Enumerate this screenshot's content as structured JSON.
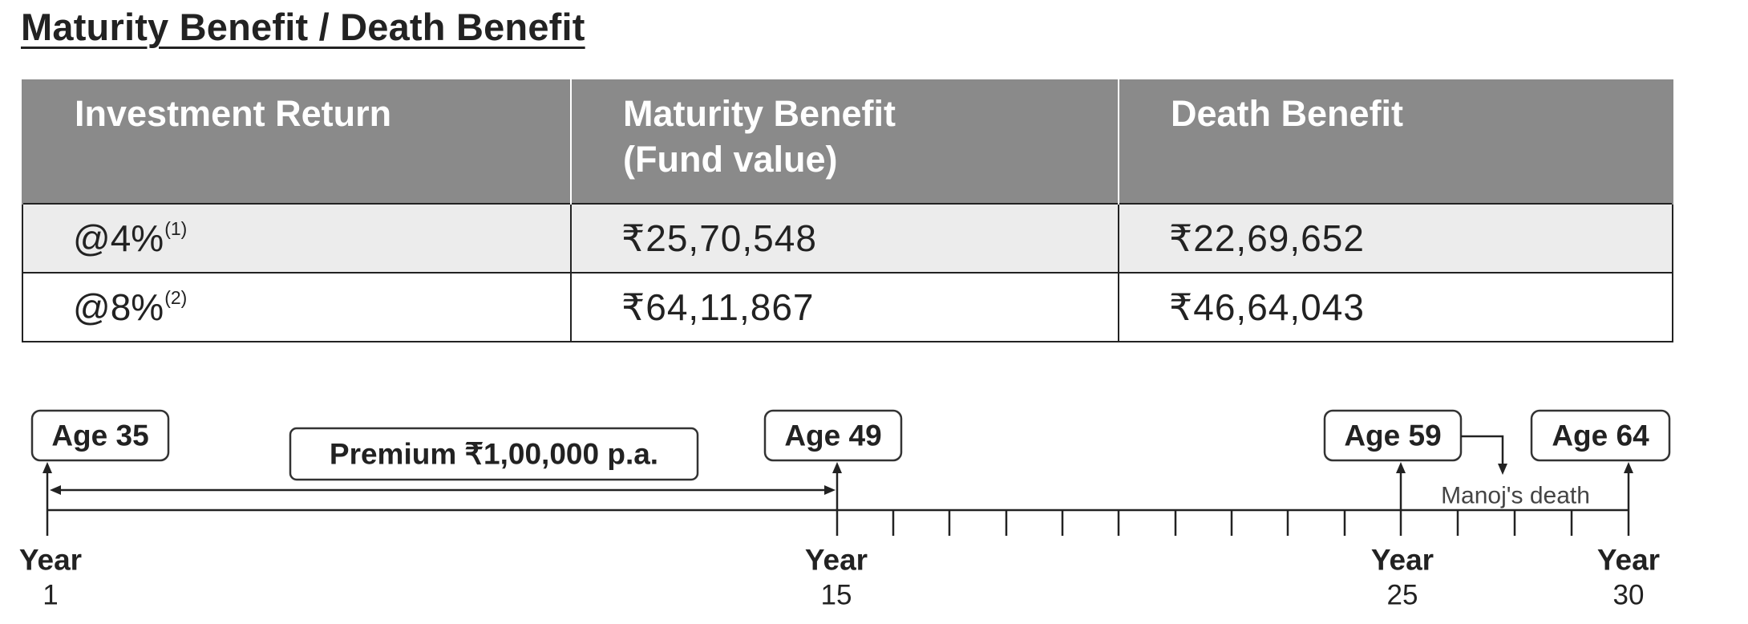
{
  "title": "Maturity Benefit / Death Benefit",
  "table": {
    "headers": {
      "col1": "Investment Return",
      "col2_line1": "Maturity Benefit",
      "col2_line2": "(Fund value)",
      "col3": "Death Benefit"
    },
    "rows": [
      {
        "rate": "@4%",
        "note": "(1)",
        "maturity": "₹25,70,548",
        "death": "₹22,69,652"
      },
      {
        "rate": "@8%",
        "note": "(2)",
        "maturity": "₹64,11,867",
        "death": "₹46,64,043"
      }
    ]
  },
  "timeline": {
    "premium_label": "Premium ₹1,00,000 p.a.",
    "event_label": "Manoj's death",
    "age_boxes": {
      "start": "Age 35",
      "mid": "Age 49",
      "death": "Age 59",
      "end": "Age 64"
    },
    "year_labels": [
      {
        "word": "Year",
        "number": "1"
      },
      {
        "word": "Year",
        "number": "15"
      },
      {
        "word": "Year",
        "number": "25"
      },
      {
        "word": "Year",
        "number": "30"
      }
    ]
  }
}
